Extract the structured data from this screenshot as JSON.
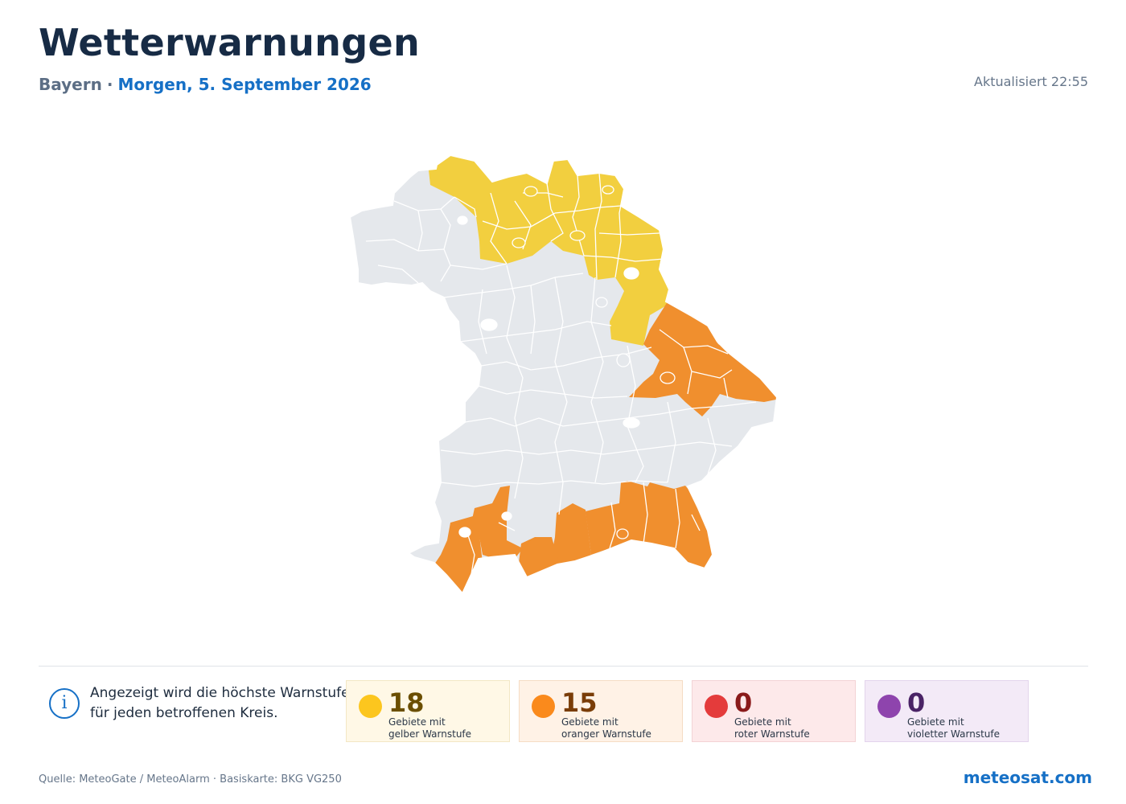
{
  "header": {
    "title": "Wetterwarnungen",
    "region": "Bayern",
    "separator": "·",
    "date": "Morgen, 5. September 2026",
    "updated": "Aktualisiert 22:55"
  },
  "map": {
    "region_name": "Bayern",
    "colors": {
      "none": "#e5e8ec",
      "yellow": "#f2cf3f",
      "orange": "#f08f2e",
      "border": "#ffffff"
    },
    "warning_zones": [
      {
        "name": "north-yellow",
        "level": "yellow"
      },
      {
        "name": "east-orange",
        "level": "orange"
      },
      {
        "name": "south-orange",
        "level": "orange"
      }
    ]
  },
  "info": {
    "icon": "info-icon",
    "line1": "Angezeigt wird die höchste Warnstufe",
    "line2": "für jeden betroffenen Kreis."
  },
  "summary": [
    {
      "key": "yellow",
      "count": "18",
      "line1": "Gebiete mit",
      "line2": "gelber Warnstufe",
      "dot": "#fcc61e",
      "num_color": "#6b4f00"
    },
    {
      "key": "orange",
      "count": "15",
      "line1": "Gebiete mit",
      "line2": "oranger Warnstufe",
      "dot": "#fa8a1c",
      "num_color": "#7a3d08"
    },
    {
      "key": "red",
      "count": "0",
      "line1": "Gebiete mit",
      "line2": "roter Warnstufe",
      "dot": "#e43b3b",
      "num_color": "#8a1a1a"
    },
    {
      "key": "violet",
      "count": "0",
      "line1": "Gebiete mit",
      "line2": "violetter Warnstufe",
      "dot": "#8e44ad",
      "num_color": "#4a2366"
    }
  ],
  "footer": {
    "source": "Quelle: MeteoGate / MeteoAlarm · Basiskarte: BKG VG250",
    "brand": "meteosat.com"
  }
}
